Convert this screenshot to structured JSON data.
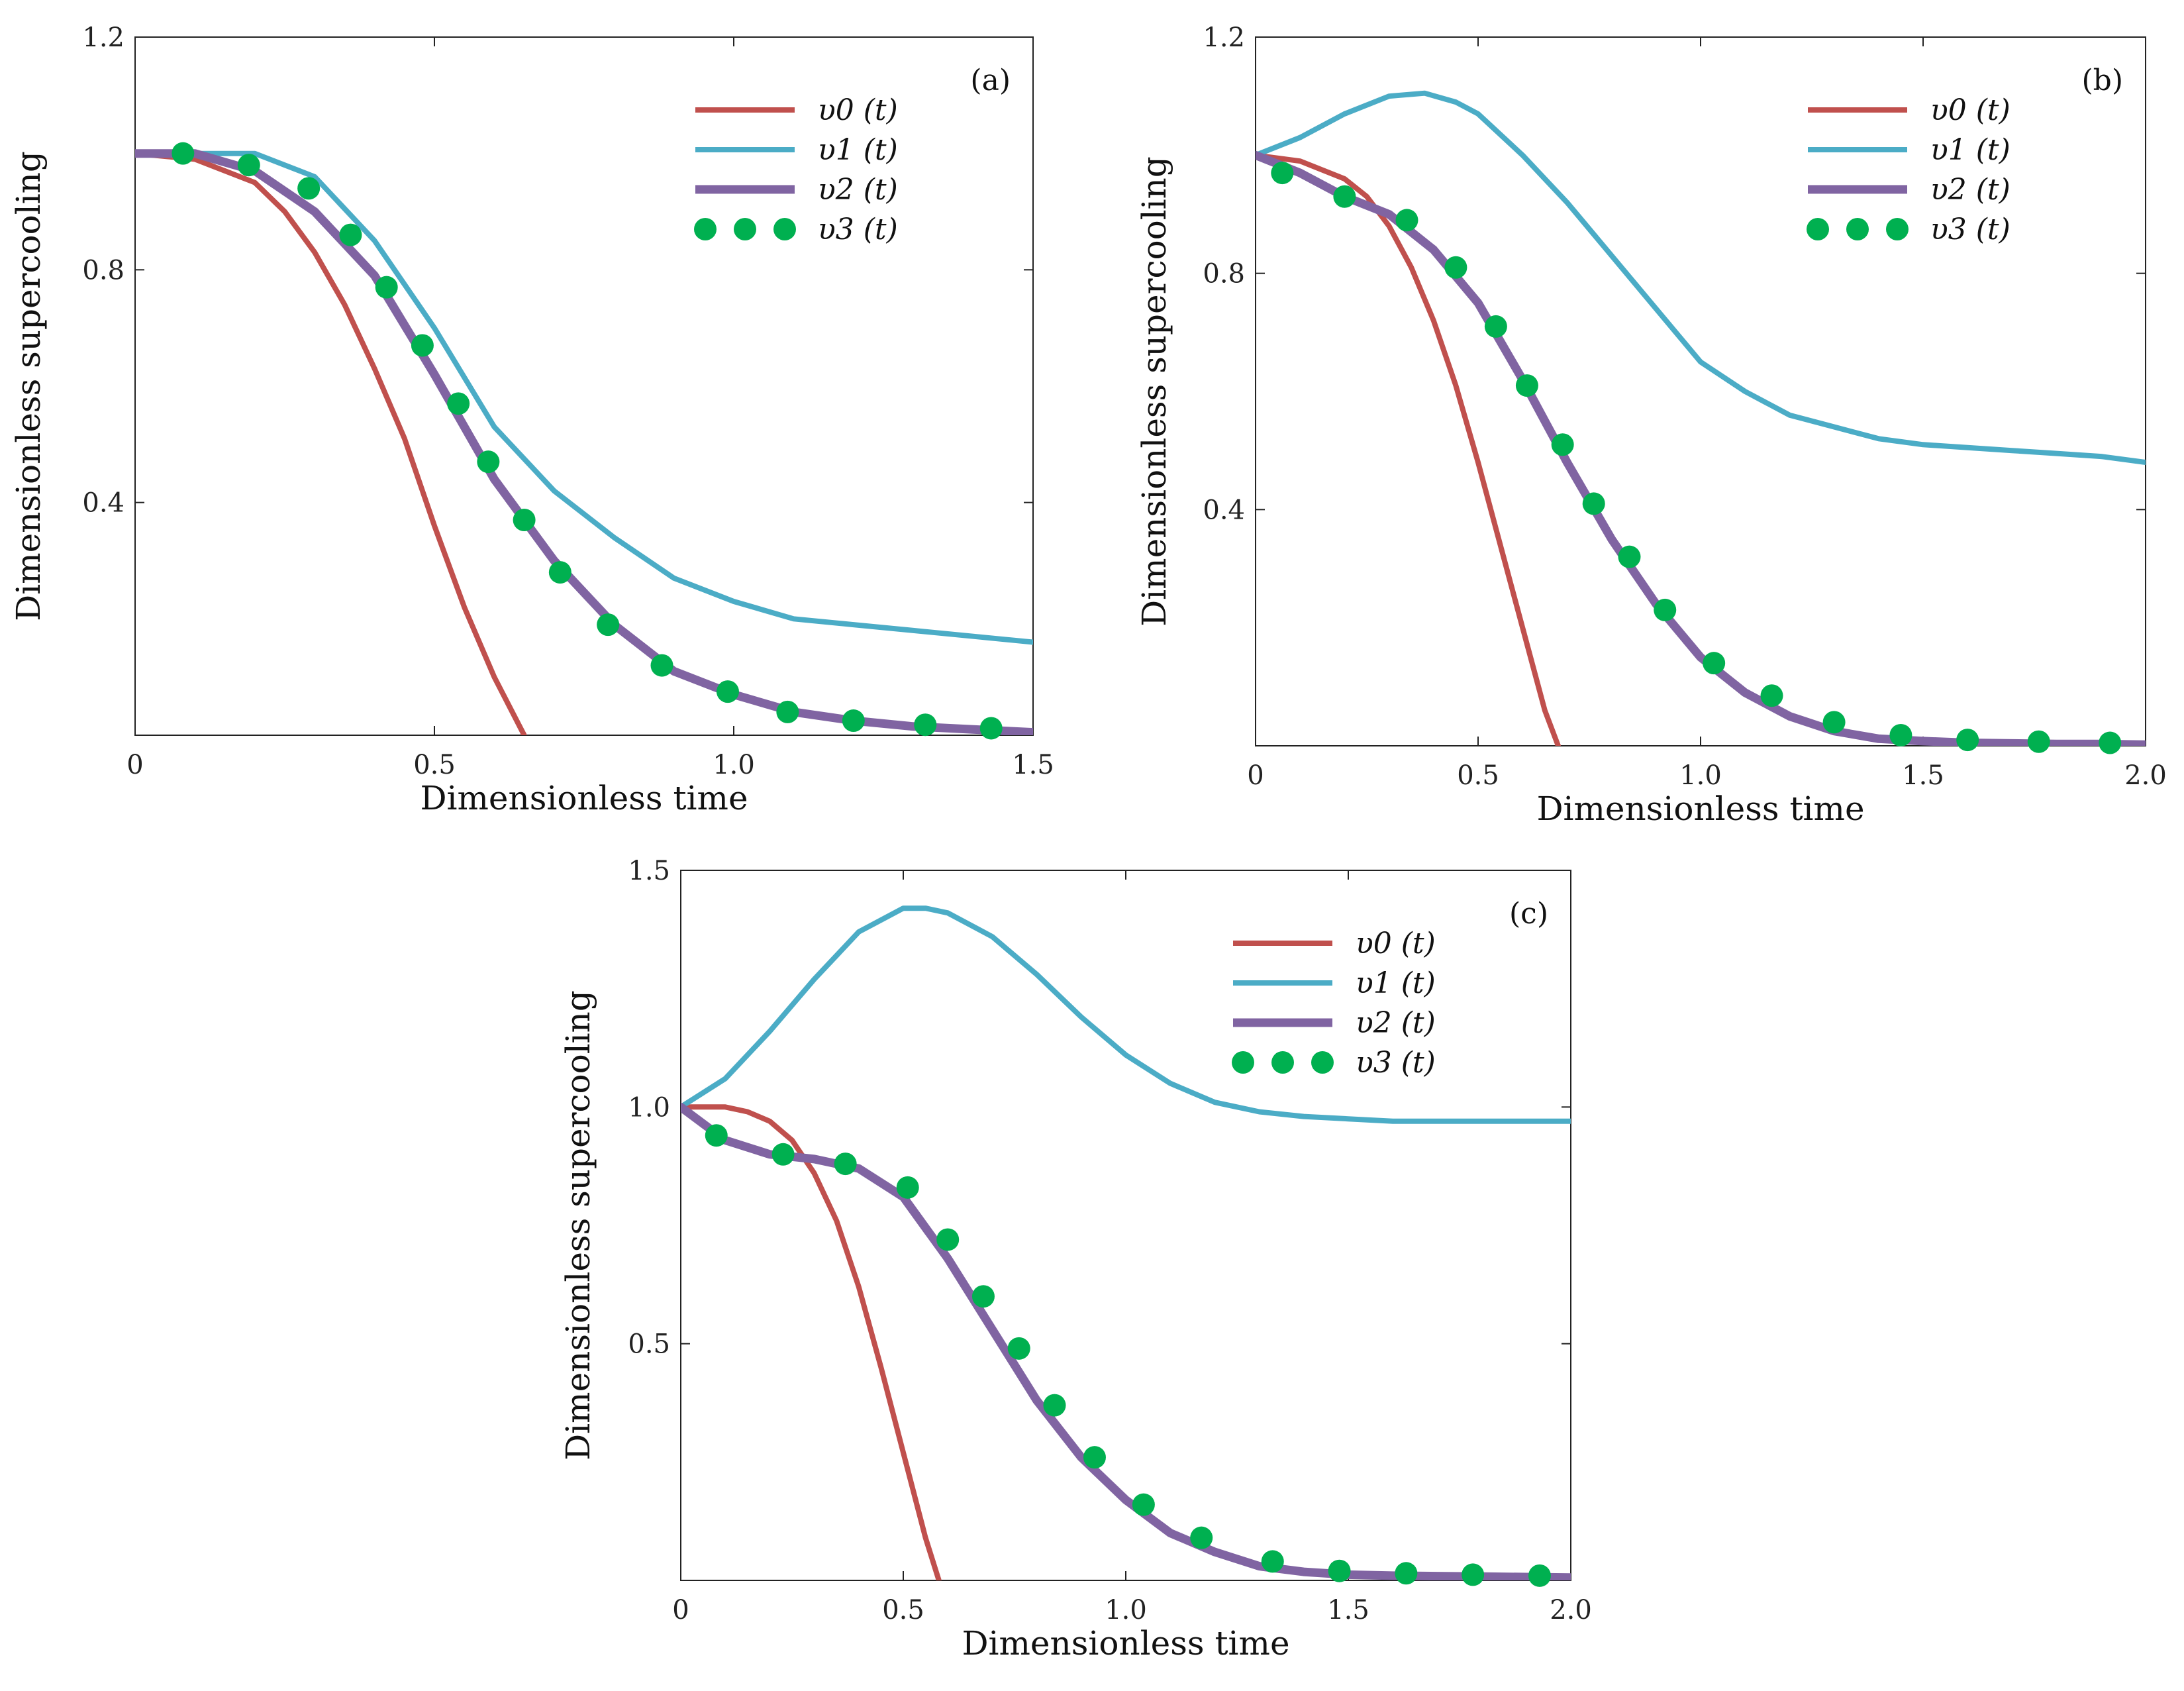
{
  "chart_data": [
    {
      "type": "line",
      "panel_label": "(a)",
      "xlabel": "Dimensionless time",
      "ylabel": "Dimensionless  supercooling",
      "xlim": [
        0,
        1.5
      ],
      "ylim": [
        0,
        1.2
      ],
      "xticks": [
        0,
        0.5,
        1.0,
        1.5
      ],
      "xtick_labels": [
        "0",
        "0.5",
        "1.0",
        "1.5"
      ],
      "yticks": [
        0.4,
        0.8,
        1.2
      ],
      "ytick_labels": [
        "0.4",
        "0.8",
        "1.2"
      ],
      "legend_position": "top-right",
      "series": [
        {
          "name": "υ0 (t)",
          "color": "#c0504d",
          "style": "line",
          "x": [
            0,
            0.1,
            0.2,
            0.25,
            0.3,
            0.35,
            0.4,
            0.45,
            0.5,
            0.55,
            0.6,
            0.65
          ],
          "y": [
            1.0,
            0.99,
            0.95,
            0.9,
            0.83,
            0.74,
            0.63,
            0.51,
            0.36,
            0.22,
            0.1,
            0.0
          ]
        },
        {
          "name": "υ1 (t)",
          "color": "#4bacc6",
          "style": "line",
          "x": [
            0,
            0.1,
            0.2,
            0.3,
            0.4,
            0.5,
            0.6,
            0.7,
            0.8,
            0.9,
            1.0,
            1.1,
            1.2,
            1.3,
            1.4,
            1.5
          ],
          "y": [
            1.0,
            1.0,
            1.0,
            0.96,
            0.85,
            0.7,
            0.53,
            0.42,
            0.34,
            0.27,
            0.23,
            0.2,
            0.19,
            0.18,
            0.17,
            0.16
          ]
        },
        {
          "name": "υ2 (t)",
          "color": "#8064a2",
          "style": "line",
          "x": [
            0,
            0.1,
            0.2,
            0.3,
            0.4,
            0.5,
            0.6,
            0.7,
            0.8,
            0.9,
            1.0,
            1.1,
            1.2,
            1.3,
            1.4,
            1.5
          ],
          "y": [
            1.0,
            1.0,
            0.97,
            0.9,
            0.79,
            0.62,
            0.44,
            0.3,
            0.19,
            0.11,
            0.07,
            0.04,
            0.025,
            0.015,
            0.01,
            0.005
          ]
        },
        {
          "name": "υ3 (t)",
          "color": "#00b050",
          "style": "dots",
          "x": [
            0.08,
            0.19,
            0.29,
            0.36,
            0.42,
            0.48,
            0.54,
            0.59,
            0.65,
            0.71,
            0.79,
            0.88,
            0.99,
            1.09,
            1.2,
            1.32,
            1.43
          ],
          "y": [
            1.0,
            0.98,
            0.94,
            0.86,
            0.77,
            0.67,
            0.57,
            0.47,
            0.37,
            0.28,
            0.19,
            0.12,
            0.075,
            0.04,
            0.025,
            0.018,
            0.012
          ]
        }
      ]
    },
    {
      "type": "line",
      "panel_label": "(b)",
      "xlabel": "Dimensionless time",
      "ylabel": "Dimensionless supercooling",
      "xlim": [
        0,
        2.0
      ],
      "ylim": [
        0,
        1.2
      ],
      "xticks": [
        0,
        0.5,
        1.0,
        1.5,
        2.0
      ],
      "xtick_labels": [
        "0",
        "0.5",
        "1.0",
        "1.5",
        "2.0"
      ],
      "yticks": [
        0.4,
        0.8,
        1.2
      ],
      "ytick_labels": [
        "0.4",
        "0.8",
        "1.2"
      ],
      "legend_position": "top-right",
      "series": [
        {
          "name": "υ0 (t)",
          "color": "#c0504d",
          "style": "line",
          "x": [
            0,
            0.1,
            0.2,
            0.25,
            0.3,
            0.35,
            0.4,
            0.45,
            0.5,
            0.55,
            0.6,
            0.65,
            0.68
          ],
          "y": [
            1.0,
            0.99,
            0.96,
            0.93,
            0.88,
            0.81,
            0.72,
            0.61,
            0.48,
            0.34,
            0.2,
            0.06,
            0.0
          ]
        },
        {
          "name": "υ1 (t)",
          "color": "#4bacc6",
          "style": "line",
          "x": [
            0,
            0.1,
            0.2,
            0.3,
            0.38,
            0.45,
            0.5,
            0.6,
            0.7,
            0.8,
            0.9,
            1.0,
            1.1,
            1.2,
            1.3,
            1.4,
            1.5,
            1.6,
            1.7,
            1.8,
            1.9,
            2.0
          ],
          "y": [
            1.0,
            1.03,
            1.07,
            1.1,
            1.105,
            1.09,
            1.07,
            1.0,
            0.92,
            0.83,
            0.74,
            0.65,
            0.6,
            0.56,
            0.54,
            0.52,
            0.51,
            0.505,
            0.5,
            0.495,
            0.49,
            0.48
          ]
        },
        {
          "name": "υ2 (t)",
          "color": "#8064a2",
          "style": "line",
          "x": [
            0,
            0.1,
            0.2,
            0.3,
            0.4,
            0.5,
            0.6,
            0.7,
            0.8,
            0.9,
            1.0,
            1.1,
            1.2,
            1.3,
            1.4,
            1.5,
            1.6,
            1.7,
            1.8,
            1.9,
            2.0
          ],
          "y": [
            1.0,
            0.97,
            0.93,
            0.9,
            0.84,
            0.75,
            0.62,
            0.48,
            0.35,
            0.24,
            0.15,
            0.09,
            0.05,
            0.025,
            0.012,
            0.008,
            0.005,
            0.004,
            0.003,
            0.003,
            0.002
          ]
        },
        {
          "name": "υ3 (t)",
          "color": "#00b050",
          "style": "dots",
          "x": [
            0.06,
            0.2,
            0.34,
            0.45,
            0.54,
            0.61,
            0.69,
            0.76,
            0.84,
            0.92,
            1.03,
            1.16,
            1.3,
            1.45,
            1.6,
            1.76,
            1.92
          ],
          "y": [
            0.97,
            0.93,
            0.89,
            0.81,
            0.71,
            0.61,
            0.51,
            0.41,
            0.32,
            0.23,
            0.14,
            0.085,
            0.04,
            0.018,
            0.01,
            0.007,
            0.005
          ]
        }
      ]
    },
    {
      "type": "line",
      "panel_label": "(c)",
      "xlabel": "Dimensionless time",
      "ylabel": "Dimensionless supercooling",
      "xlim": [
        0,
        2.0
      ],
      "ylim": [
        0,
        1.5
      ],
      "xticks": [
        0,
        0.5,
        1.0,
        1.5,
        2.0
      ],
      "xtick_labels": [
        "0",
        "0.5",
        "1.0",
        "1.5",
        "2.0"
      ],
      "yticks": [
        0.5,
        1.0,
        1.5
      ],
      "ytick_labels": [
        "0.5",
        "1.0",
        "1.5"
      ],
      "legend_position": "top-right",
      "series": [
        {
          "name": "υ0 (t)",
          "color": "#c0504d",
          "style": "line",
          "x": [
            0,
            0.1,
            0.15,
            0.2,
            0.25,
            0.3,
            0.35,
            0.4,
            0.45,
            0.5,
            0.55,
            0.58
          ],
          "y": [
            1.0,
            1.0,
            0.99,
            0.97,
            0.93,
            0.86,
            0.76,
            0.62,
            0.45,
            0.27,
            0.09,
            0.0
          ]
        },
        {
          "name": "υ1 (t)",
          "color": "#4bacc6",
          "style": "line",
          "x": [
            0,
            0.1,
            0.2,
            0.3,
            0.4,
            0.5,
            0.55,
            0.6,
            0.7,
            0.8,
            0.9,
            1.0,
            1.1,
            1.2,
            1.3,
            1.4,
            1.5,
            1.6,
            1.7,
            1.8,
            1.9,
            2.0
          ],
          "y": [
            1.0,
            1.06,
            1.16,
            1.27,
            1.37,
            1.42,
            1.42,
            1.41,
            1.36,
            1.28,
            1.19,
            1.11,
            1.05,
            1.01,
            0.99,
            0.98,
            0.975,
            0.97,
            0.97,
            0.97,
            0.97,
            0.97
          ]
        },
        {
          "name": "υ2 (t)",
          "color": "#8064a2",
          "style": "line",
          "x": [
            0,
            0.1,
            0.2,
            0.3,
            0.4,
            0.5,
            0.6,
            0.7,
            0.8,
            0.9,
            1.0,
            1.1,
            1.2,
            1.3,
            1.4,
            1.5,
            1.6,
            1.7,
            1.8,
            1.9,
            2.0
          ],
          "y": [
            1.0,
            0.93,
            0.9,
            0.89,
            0.87,
            0.81,
            0.68,
            0.53,
            0.38,
            0.26,
            0.17,
            0.1,
            0.06,
            0.03,
            0.018,
            0.012,
            0.01,
            0.009,
            0.008,
            0.007,
            0.006
          ]
        },
        {
          "name": "υ3 (t)",
          "color": "#00b050",
          "style": "dots",
          "x": [
            0.08,
            0.23,
            0.37,
            0.51,
            0.6,
            0.68,
            0.76,
            0.84,
            0.93,
            1.04,
            1.17,
            1.33,
            1.48,
            1.63,
            1.78,
            1.93
          ],
          "y": [
            0.94,
            0.9,
            0.88,
            0.83,
            0.72,
            0.6,
            0.49,
            0.37,
            0.26,
            0.16,
            0.09,
            0.04,
            0.02,
            0.015,
            0.012,
            0.01
          ]
        }
      ]
    }
  ]
}
